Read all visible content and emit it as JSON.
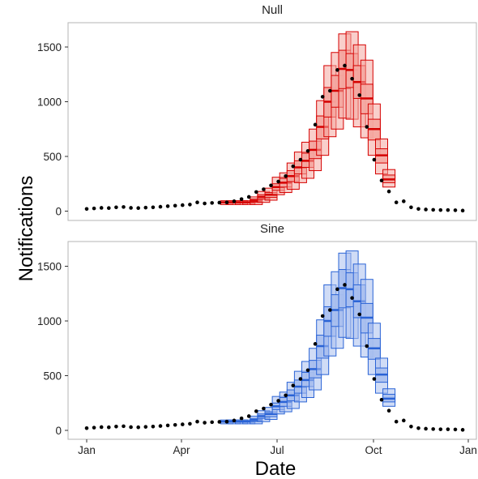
{
  "chart_data": {
    "type": "scatter",
    "xlabel": "Date",
    "ylabel": "Notifications",
    "x_ticks": [
      "Jan",
      "Apr",
      "Jul",
      "Oct",
      "Jan"
    ],
    "y_ticks": [
      "0",
      "500",
      "1000",
      "1500"
    ],
    "ylim": [
      -60,
      1720
    ],
    "observed": {
      "week": [
        0,
        1,
        2,
        3,
        4,
        5,
        6,
        7,
        8,
        9,
        10,
        11,
        12,
        13,
        14,
        15,
        16,
        17,
        18,
        19,
        20,
        21,
        22,
        23,
        24,
        25,
        26,
        27,
        28,
        29,
        30,
        31,
        32,
        33,
        34,
        35,
        36,
        37,
        38,
        39,
        40,
        41,
        42,
        43,
        44,
        45,
        46,
        47,
        48,
        49,
        50,
        51
      ],
      "value": [
        20,
        25,
        30,
        28,
        35,
        38,
        30,
        28,
        32,
        35,
        40,
        45,
        50,
        55,
        60,
        80,
        70,
        75,
        78,
        80,
        90,
        110,
        130,
        175,
        200,
        235,
        270,
        320,
        410,
        470,
        550,
        790,
        1045,
        1100,
        1290,
        1330,
        1210,
        1060,
        770,
        470,
        280,
        180,
        80,
        90,
        35,
        20,
        15,
        12,
        10,
        10,
        8,
        5
      ]
    },
    "panels": [
      {
        "name": "Null",
        "color": "#d50000",
        "fill": "#f4a7a1",
        "forecasts": [
          {
            "week": 19,
            "median": 80,
            "inner": [
              75,
              85
            ],
            "outer": [
              60,
              95
            ]
          },
          {
            "week": 20,
            "median": 80,
            "inner": [
              75,
              85
            ],
            "outer": [
              60,
              95
            ]
          },
          {
            "week": 21,
            "median": 80,
            "inner": [
              75,
              85
            ],
            "outer": [
              60,
              95
            ]
          },
          {
            "week": 22,
            "median": 80,
            "inner": [
              75,
              85
            ],
            "outer": [
              60,
              95
            ]
          },
          {
            "week": 23,
            "median": 95,
            "inner": [
              80,
              110
            ],
            "outer": [
              60,
              130
            ]
          },
          {
            "week": 24,
            "median": 130,
            "inner": [
              110,
              150
            ],
            "outer": [
              80,
              180
            ]
          },
          {
            "week": 25,
            "median": 150,
            "inner": [
              125,
              170
            ],
            "outer": [
              100,
              210
            ]
          },
          {
            "week": 26,
            "median": 220,
            "inner": [
              190,
              250
            ],
            "outer": [
              150,
              310
            ]
          },
          {
            "week": 27,
            "median": 260,
            "inner": [
              220,
              300
            ],
            "outer": [
              170,
              350
            ]
          },
          {
            "week": 28,
            "median": 320,
            "inner": [
              270,
              370
            ],
            "outer": [
              200,
              440
            ]
          },
          {
            "week": 29,
            "median": 400,
            "inner": [
              340,
              460
            ],
            "outer": [
              260,
              540
            ]
          },
          {
            "week": 30,
            "median": 460,
            "inner": [
              400,
              530
            ],
            "outer": [
              300,
              630
            ]
          },
          {
            "week": 31,
            "median": 560,
            "inner": [
              480,
              640
            ],
            "outer": [
              370,
              750
            ]
          },
          {
            "week": 32,
            "median": 770,
            "inner": [
              660,
              870
            ],
            "outer": [
              510,
              1010
            ]
          },
          {
            "week": 33,
            "median": 1000,
            "inner": [
              860,
              1130
            ],
            "outer": [
              680,
              1330
            ]
          },
          {
            "week": 34,
            "median": 1100,
            "inner": [
              950,
              1240
            ],
            "outer": [
              750,
              1450
            ]
          },
          {
            "week": 35,
            "median": 1300,
            "inner": [
              1120,
              1470
            ],
            "outer": [
              850,
              1620
            ]
          },
          {
            "week": 36,
            "median": 1290,
            "inner": [
              1130,
              1440
            ],
            "outer": [
              840,
              1640
            ]
          },
          {
            "week": 37,
            "median": 1180,
            "inner": [
              1030,
              1330
            ],
            "outer": [
              770,
              1520
            ]
          },
          {
            "week": 38,
            "median": 1030,
            "inner": [
              890,
              1160
            ],
            "outer": [
              670,
              1380
            ]
          },
          {
            "week": 39,
            "median": 750,
            "inner": [
              650,
              840
            ],
            "outer": [
              510,
              980
            ]
          },
          {
            "week": 40,
            "median": 510,
            "inner": [
              440,
              570
            ],
            "outer": [
              340,
              660
            ]
          },
          {
            "week": 41,
            "median": 290,
            "inner": [
              260,
              330
            ],
            "outer": [
              220,
              380
            ]
          }
        ]
      },
      {
        "name": "Sine",
        "color": "#2a63d6",
        "fill": "#a9bfee",
        "forecasts": [
          {
            "week": 19,
            "median": 80,
            "inner": [
              75,
              85
            ],
            "outer": [
              60,
              95
            ]
          },
          {
            "week": 20,
            "median": 80,
            "inner": [
              75,
              85
            ],
            "outer": [
              60,
              95
            ]
          },
          {
            "week": 21,
            "median": 80,
            "inner": [
              75,
              85
            ],
            "outer": [
              60,
              95
            ]
          },
          {
            "week": 22,
            "median": 80,
            "inner": [
              75,
              85
            ],
            "outer": [
              60,
              95
            ]
          },
          {
            "week": 23,
            "median": 95,
            "inner": [
              80,
              110
            ],
            "outer": [
              60,
              130
            ]
          },
          {
            "week": 24,
            "median": 130,
            "inner": [
              110,
              150
            ],
            "outer": [
              80,
              180
            ]
          },
          {
            "week": 25,
            "median": 150,
            "inner": [
              125,
              170
            ],
            "outer": [
              100,
              210
            ]
          },
          {
            "week": 26,
            "median": 220,
            "inner": [
              190,
              250
            ],
            "outer": [
              150,
              310
            ]
          },
          {
            "week": 27,
            "median": 260,
            "inner": [
              220,
              300
            ],
            "outer": [
              170,
              350
            ]
          },
          {
            "week": 28,
            "median": 320,
            "inner": [
              270,
              370
            ],
            "outer": [
              200,
              440
            ]
          },
          {
            "week": 29,
            "median": 400,
            "inner": [
              340,
              460
            ],
            "outer": [
              260,
              540
            ]
          },
          {
            "week": 30,
            "median": 460,
            "inner": [
              400,
              530
            ],
            "outer": [
              300,
              630
            ]
          },
          {
            "week": 31,
            "median": 560,
            "inner": [
              480,
              640
            ],
            "outer": [
              370,
              750
            ]
          },
          {
            "week": 32,
            "median": 770,
            "inner": [
              660,
              870
            ],
            "outer": [
              510,
              1010
            ]
          },
          {
            "week": 33,
            "median": 1000,
            "inner": [
              860,
              1130
            ],
            "outer": [
              680,
              1330
            ]
          },
          {
            "week": 34,
            "median": 1100,
            "inner": [
              950,
              1240
            ],
            "outer": [
              750,
              1450
            ]
          },
          {
            "week": 35,
            "median": 1300,
            "inner": [
              1120,
              1470
            ],
            "outer": [
              850,
              1620
            ]
          },
          {
            "week": 36,
            "median": 1290,
            "inner": [
              1130,
              1440
            ],
            "outer": [
              840,
              1640
            ]
          },
          {
            "week": 37,
            "median": 1180,
            "inner": [
              1030,
              1330
            ],
            "outer": [
              770,
              1520
            ]
          },
          {
            "week": 38,
            "median": 1030,
            "inner": [
              890,
              1160
            ],
            "outer": [
              670,
              1380
            ]
          },
          {
            "week": 39,
            "median": 750,
            "inner": [
              650,
              840
            ],
            "outer": [
              510,
              980
            ]
          },
          {
            "week": 40,
            "median": 510,
            "inner": [
              440,
              570
            ],
            "outer": [
              340,
              660
            ]
          },
          {
            "week": 41,
            "median": 290,
            "inner": [
              260,
              330
            ],
            "outer": [
              220,
              380
            ]
          }
        ]
      }
    ]
  }
}
